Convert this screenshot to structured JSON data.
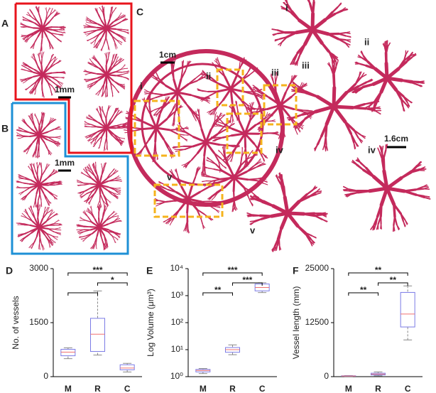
{
  "panel_labels": [
    "A",
    "B",
    "C",
    "D",
    "E",
    "F"
  ],
  "scale_bars": [
    "1mm",
    "1mm",
    "1cm",
    "1.6cm"
  ],
  "inset_labels": [
    "i",
    "ii",
    "iii",
    "iv",
    "v"
  ],
  "zoom_labels": [
    "i",
    "ii",
    "iii",
    "iv",
    "v"
  ],
  "chart_data": [
    {
      "type": "box",
      "ylabel": "No. of vessels",
      "categories": [
        "M",
        "R",
        "C"
      ],
      "category_colors": [
        "#1e8fd6",
        "#e3212b",
        "#f2ab00"
      ],
      "box_color": "#7b7be6",
      "median_color": "#f07070",
      "whisker_color": "#888888",
      "boxes": [
        {
          "min": 500,
          "q1": 580,
          "median": 680,
          "q3": 760,
          "max": 800
        },
        {
          "min": 600,
          "q1": 700,
          "median": 1180,
          "q3": 1620,
          "max": 2380
        },
        {
          "min": 130,
          "q1": 190,
          "median": 240,
          "q3": 330,
          "max": 370
        }
      ],
      "ylim": [
        0,
        3000
      ],
      "yticks": [
        0,
        1500,
        3000
      ],
      "significance": [
        {
          "from": "M",
          "to": "C",
          "label": "***"
        },
        {
          "from": "R",
          "to": "C",
          "label": "*"
        },
        {
          "from": "M",
          "to": "R",
          "label": ""
        }
      ]
    },
    {
      "type": "box",
      "ylabel": "Log Volume (μm³)",
      "log": true,
      "categories": [
        "M",
        "R",
        "C"
      ],
      "category_colors": [
        "#1e8fd6",
        "#e3212b",
        "#f2ab00"
      ],
      "box_color": "#7b7be6",
      "median_color": "#f07070",
      "whisker_color": "#888888",
      "boxes": [
        {
          "min": 1.3,
          "q1": 1.5,
          "median": 1.7,
          "q3": 1.85,
          "max": 2.0
        },
        {
          "min": 6.5,
          "q1": 8,
          "median": 10,
          "q3": 12,
          "max": 15
        },
        {
          "min": 1300,
          "q1": 1500,
          "median": 2000,
          "q3": 2700,
          "max": 3000
        }
      ],
      "ylim": [
        1,
        10000
      ],
      "yticks": [
        {
          "value": 1,
          "label": "10⁰"
        },
        {
          "value": 10,
          "label": "10¹"
        },
        {
          "value": 100,
          "label": "10²"
        },
        {
          "value": 1000,
          "label": "10³"
        },
        {
          "value": 10000,
          "label": "10⁴"
        }
      ],
      "significance": [
        {
          "from": "M",
          "to": "C",
          "label": "***"
        },
        {
          "from": "R",
          "to": "C",
          "label": "***"
        },
        {
          "from": "M",
          "to": "R",
          "label": "**"
        }
      ]
    },
    {
      "type": "box",
      "ylabel": "Vessel length (mm)",
      "categories": [
        "M",
        "R",
        "C"
      ],
      "category_colors": [
        "#1e8fd6",
        "#e3212b",
        "#f2ab00"
      ],
      "box_color": "#7b7be6",
      "median_color": "#f07070",
      "whisker_color": "#888888",
      "boxes": [
        {
          "min": 50,
          "q1": 100,
          "median": 150,
          "q3": 200,
          "max": 250
        },
        {
          "min": 200,
          "q1": 400,
          "median": 600,
          "q3": 800,
          "max": 1100
        },
        {
          "min": 8500,
          "q1": 11500,
          "median": 14500,
          "q3": 19500,
          "max": 21000
        }
      ],
      "ylim": [
        0,
        25000
      ],
      "yticks": [
        0,
        12500,
        25000
      ],
      "significance": [
        {
          "from": "M",
          "to": "C",
          "label": "**"
        },
        {
          "from": "R",
          "to": "C",
          "label": "**"
        },
        {
          "from": "M",
          "to": "R",
          "label": "**"
        }
      ]
    }
  ]
}
